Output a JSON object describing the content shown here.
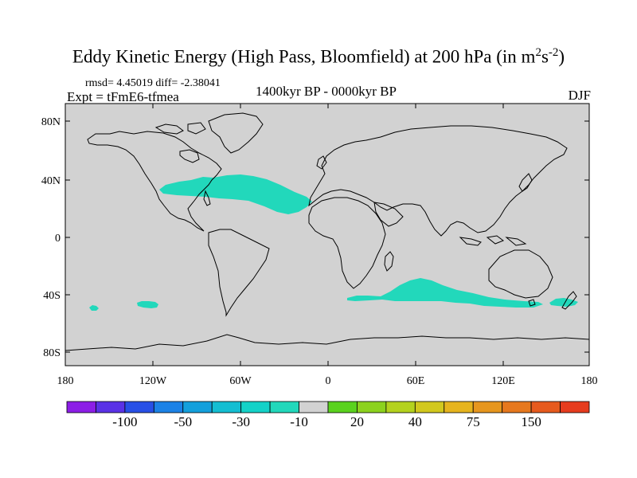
{
  "title": {
    "main": "Eddy Kinetic Energy (High Pass, Bloomfield) at 200 hPa (in m",
    "sup1": "2",
    "mid": "s",
    "sup2": "-2",
    "end": ")"
  },
  "stats": "rmsd= 4.45019 diff= -2.38041",
  "experiment": "Expt = tFmE6-tfmea",
  "period": "1400kyr BP - 0000kyr BP",
  "season": "DJF",
  "map": {
    "ocean_land_color": "#d2d2d2",
    "coastline_color": "#000000",
    "lat_labels": [
      "80N",
      "40N",
      "0",
      "40S",
      "80S"
    ],
    "lon_labels": [
      "180",
      "120W",
      "60W",
      "0",
      "60E",
      "120E",
      "180"
    ],
    "anomaly_fill_color": "#22d8bb",
    "anomaly_fill_label": "-10",
    "regions": [
      "north-atlantic-storm-track",
      "southern-indian-ocean",
      "south-pacific-west",
      "south-pacific-east",
      "tasman-sea"
    ]
  },
  "colorbar": {
    "colors": [
      "#8c1ee6",
      "#5a32e6",
      "#2850e6",
      "#1c82e6",
      "#14a0dc",
      "#14bed2",
      "#14d2c8",
      "#22d8bb",
      "#d2d2d2",
      "#5ad21e",
      "#8cd21e",
      "#b4d21e",
      "#d2c81e",
      "#e6b41e",
      "#e6961e",
      "#e6781e",
      "#e65a1e",
      "#e63c1e"
    ],
    "labels": [
      "-100",
      "-50",
      "-30",
      "-10",
      "20",
      "40",
      "75",
      "150"
    ]
  }
}
